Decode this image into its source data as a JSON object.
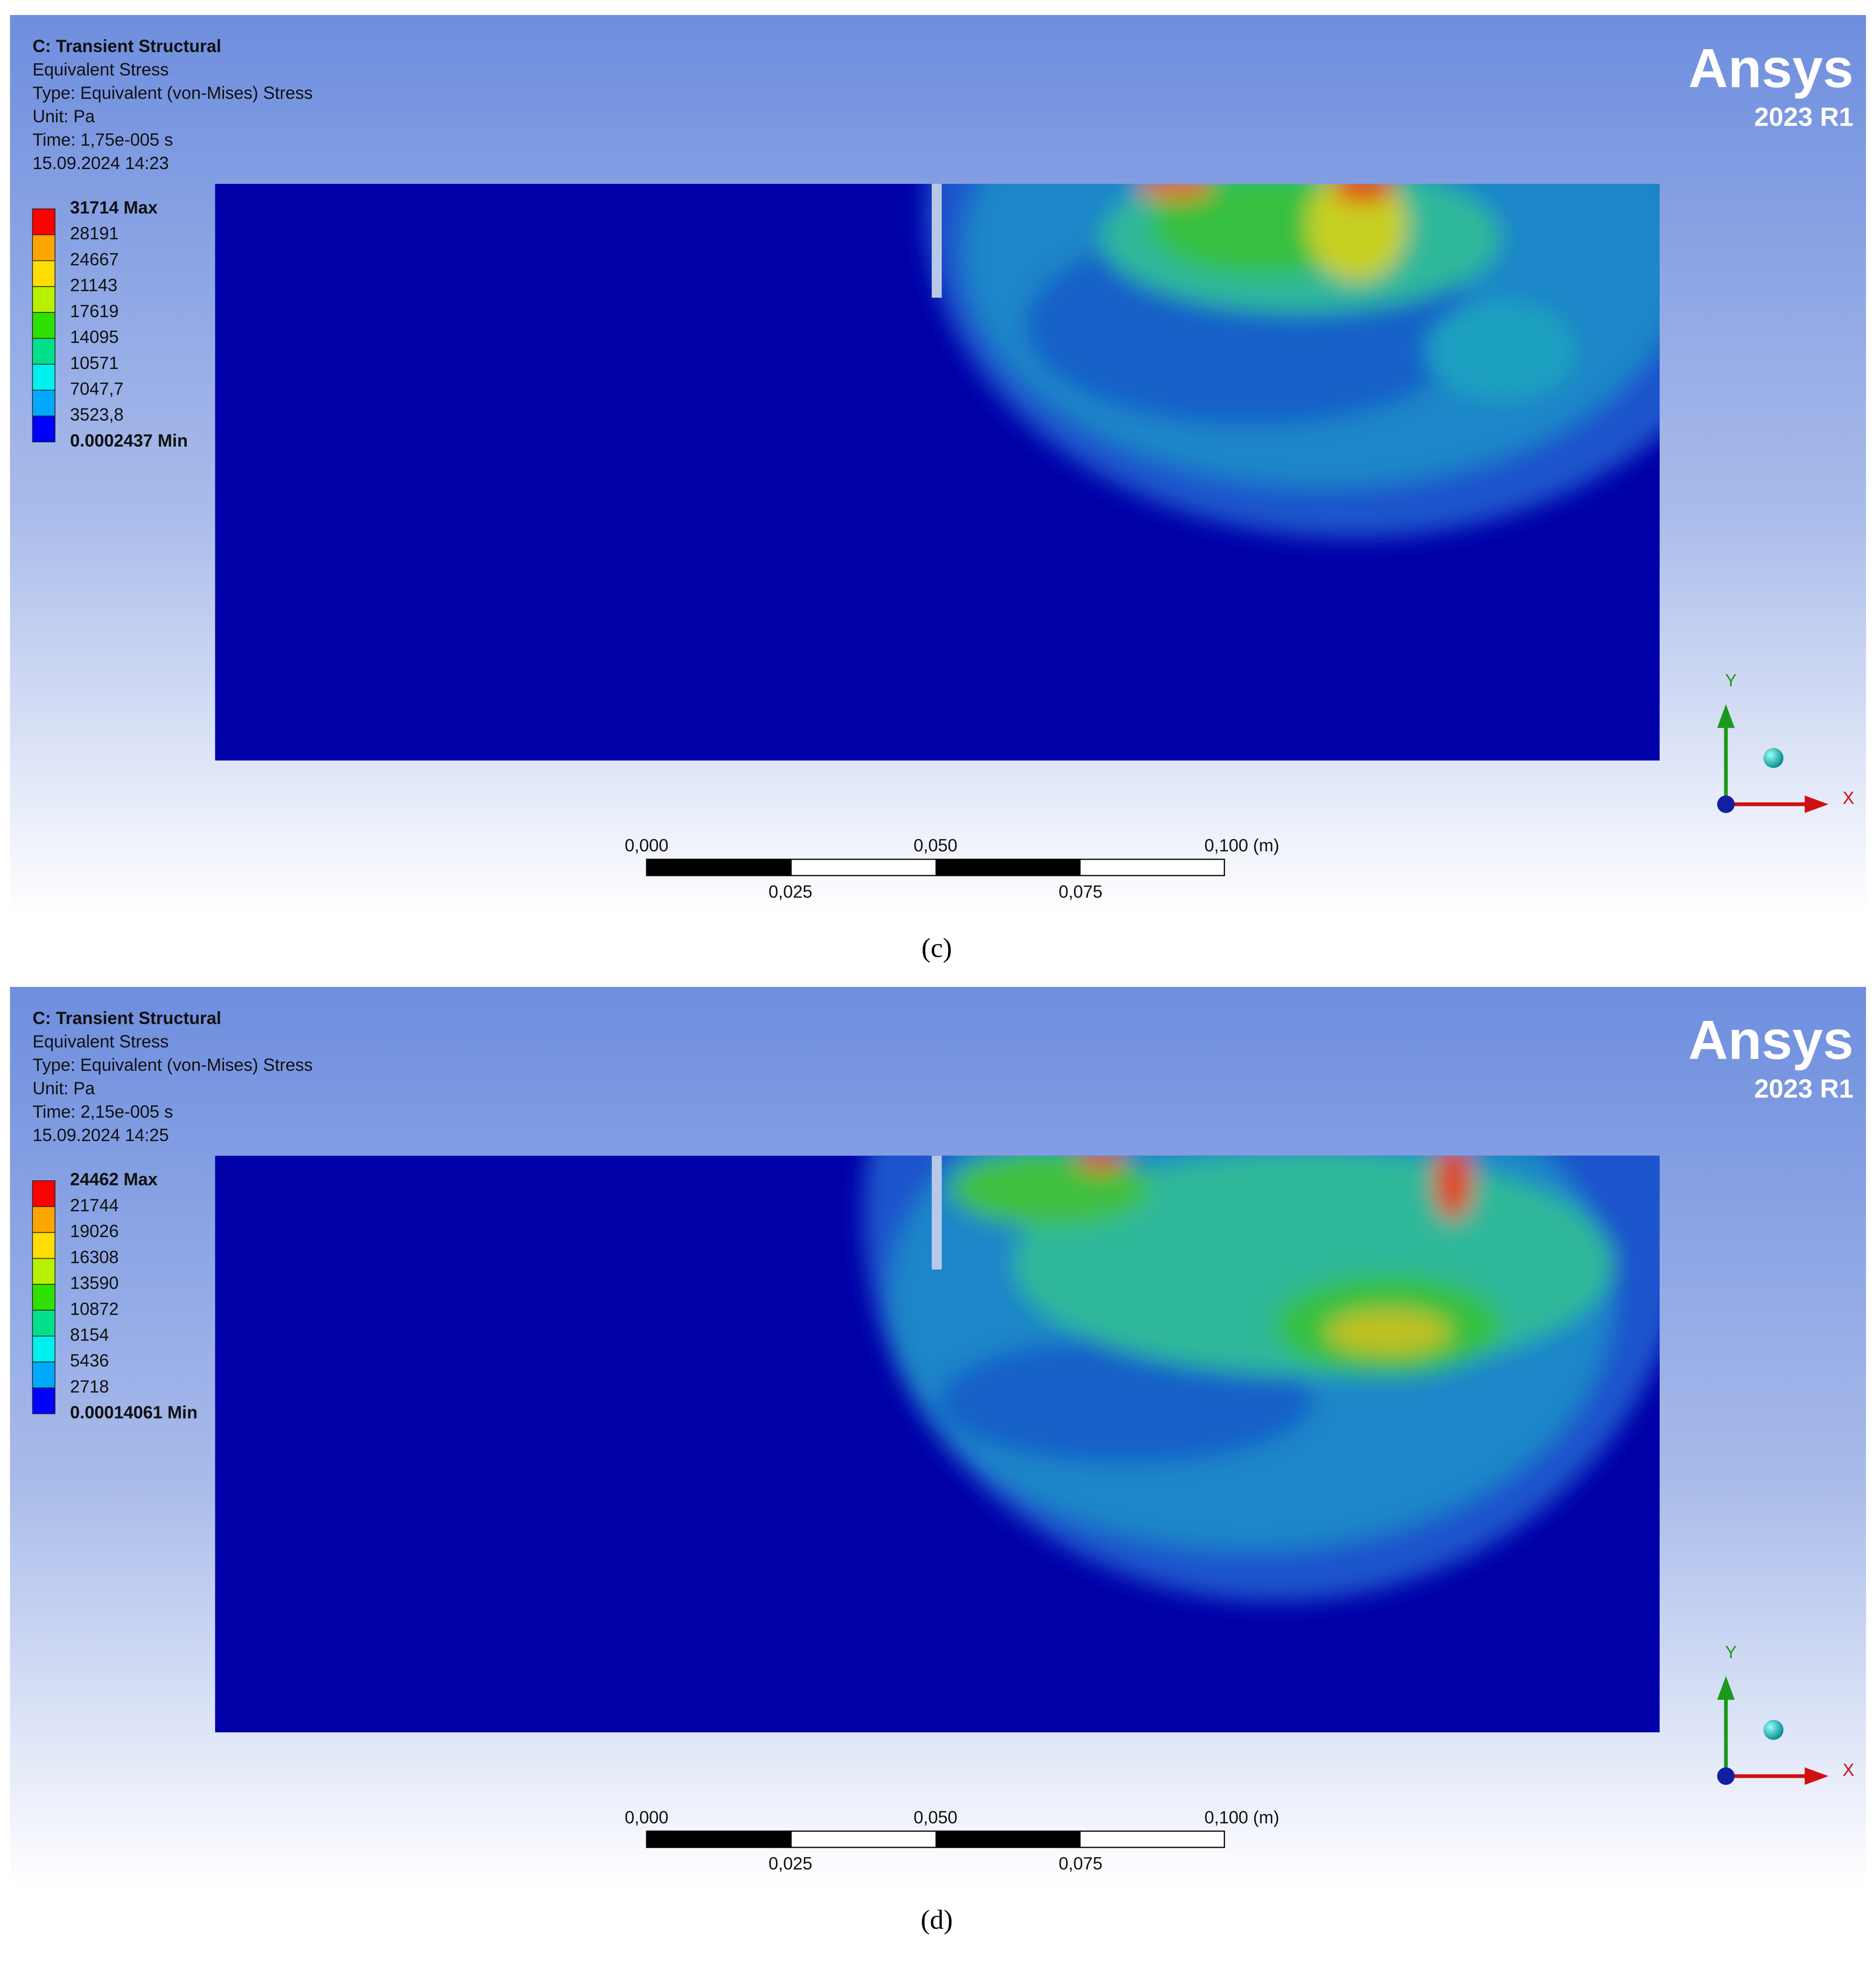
{
  "panels": [
    {
      "header": {
        "title": "C: Transient Structural",
        "result": "Equivalent Stress",
        "type": "Type: Equivalent (von-Mises) Stress",
        "unit": "Unit: Pa",
        "time": "Time: 1,75e-005 s",
        "date": "15.09.2024 14:23"
      },
      "legend": {
        "labels": [
          "31714 Max",
          "28191",
          "24667",
          "21143",
          "17619",
          "14095",
          "10571",
          "7047,7",
          "3523,8",
          "0.0002437 Min"
        ]
      },
      "logo": {
        "brand": "Ansys",
        "version": "2023 R1"
      },
      "scale_bar": {
        "top_labels": [
          "0,000",
          "0,050",
          "0,100 (m)"
        ],
        "bottom_labels": [
          "0,025",
          "0,075"
        ]
      },
      "axes": {
        "y": "Y",
        "x": "X"
      },
      "caption": "(c)"
    },
    {
      "header": {
        "title": "C: Transient Structural",
        "result": "Equivalent Stress",
        "type": "Type: Equivalent (von-Mises) Stress",
        "unit": "Unit: Pa",
        "time": "Time: 2,15e-005 s",
        "date": "15.09.2024 14:25"
      },
      "legend": {
        "labels": [
          "24462 Max",
          "21744",
          "19026",
          "16308",
          "13590",
          "10872",
          "8154",
          "5436",
          "2718",
          "0.00014061 Min"
        ]
      },
      "logo": {
        "brand": "Ansys",
        "version": "2023 R1"
      },
      "scale_bar": {
        "top_labels": [
          "0,000",
          "0,050",
          "0,100 (m)"
        ],
        "bottom_labels": [
          "0,025",
          "0,075"
        ]
      },
      "axes": {
        "y": "Y",
        "x": "X"
      },
      "caption": "(d)"
    }
  ]
}
